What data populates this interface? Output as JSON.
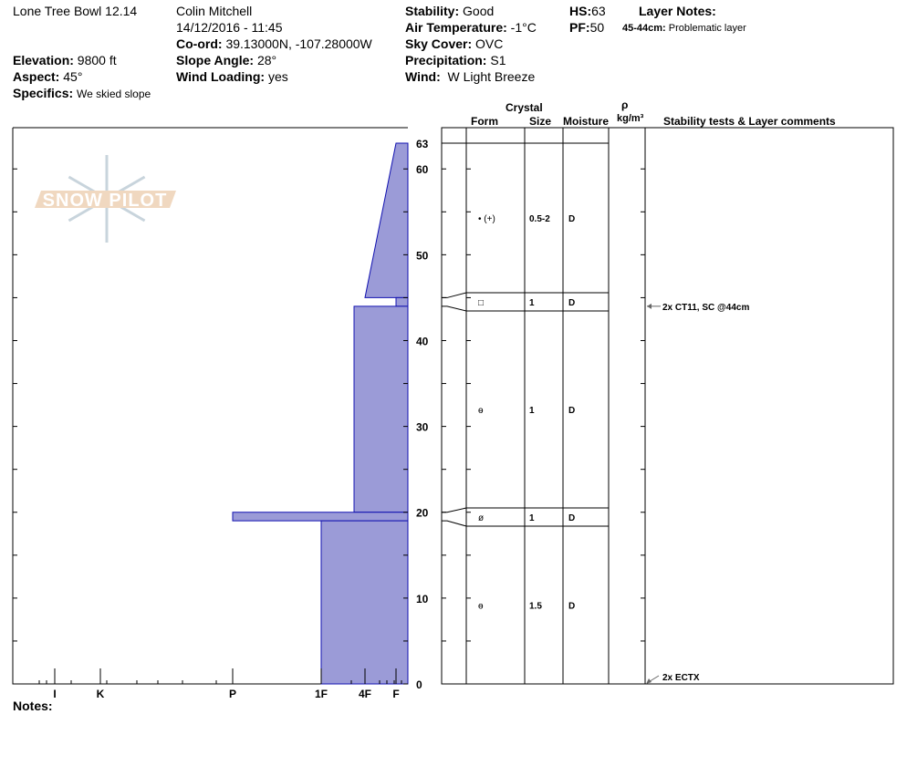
{
  "header": {
    "location": "Lone Tree Bowl 12.14",
    "observer": "Colin Mitchell",
    "datetime": "14/12/2016 - 11:45",
    "coord_label": "Co-ord:",
    "coord": "39.13000N, -107.28000W",
    "elevation_label": "Elevation:",
    "elevation": "9800 ft",
    "aspect_label": "Aspect:",
    "aspect": "45°",
    "specifics_label": "Specifics:",
    "specifics": "We skied slope",
    "slope_label": "Slope Angle:",
    "slope": "28°",
    "wind_loading_label": "Wind Loading:",
    "wind_loading": "yes",
    "stability_label": "Stability:",
    "stability": "Good",
    "air_temp_label": "Air Temperature:",
    "air_temp": "-1°C",
    "sky_label": "Sky Cover:",
    "sky": "OVC",
    "precip_label": "Precipitation:",
    "precip": "S1",
    "wind_label": "Wind:",
    "wind": "W Light Breeze",
    "hs_label": "HS:",
    "hs": "63",
    "pf_label": "PF:",
    "pf": "50",
    "layer_notes_label": "Layer Notes:",
    "layer_note_range": "45-44cm:",
    "layer_note": "Problematic layer",
    "notes_label": "Notes:"
  },
  "logo": {
    "text": "SNOW PILOT",
    "color": "#f0d8c0",
    "flake_color": "#c8d4dc"
  },
  "columns": {
    "crystal": "Crystal",
    "form": "Form",
    "size": "Size",
    "moisture": "Moisture",
    "rho": "ρ",
    "density_unit": "kg/m³",
    "comments": "Stability tests & Layer comments"
  },
  "chart_data": {
    "type": "snow-profile",
    "depth_axis": {
      "min": 0,
      "max": 63,
      "ticks": [
        0,
        10,
        20,
        30,
        40,
        50,
        60,
        63
      ]
    },
    "hardness_axis": [
      "I",
      "K",
      "P",
      "1F",
      "4F",
      "F"
    ],
    "fill_color": "#9b9bd7",
    "stroke_color": "#1010b0",
    "layers": [
      {
        "top": 63,
        "bottom": 45,
        "hardness_top": "F",
        "hardness_bottom": "4F",
        "form": "• (+)",
        "size": "0.5-2",
        "moisture": "D"
      },
      {
        "top": 45,
        "bottom": 44,
        "hardness_top": "F",
        "hardness_bottom": "F",
        "form": "□",
        "size": "1",
        "moisture": "D"
      },
      {
        "top": 44,
        "bottom": 20,
        "hardness_top": "4F+",
        "hardness_bottom": "4F+",
        "form": "ɵ",
        "size": "1",
        "moisture": "D"
      },
      {
        "top": 20,
        "bottom": 19,
        "hardness_top": "P",
        "hardness_bottom": "P",
        "form": "ø",
        "size": "1",
        "moisture": "D"
      },
      {
        "top": 19,
        "bottom": 0,
        "hardness_top": "1F",
        "hardness_bottom": "1F",
        "form": "ɵ",
        "size": "1.5",
        "moisture": "D"
      }
    ],
    "stability_tests": [
      {
        "depth": 44,
        "text": "2x CT11, SC @44cm"
      },
      {
        "depth": 0,
        "text": "2x ECTX"
      }
    ]
  }
}
